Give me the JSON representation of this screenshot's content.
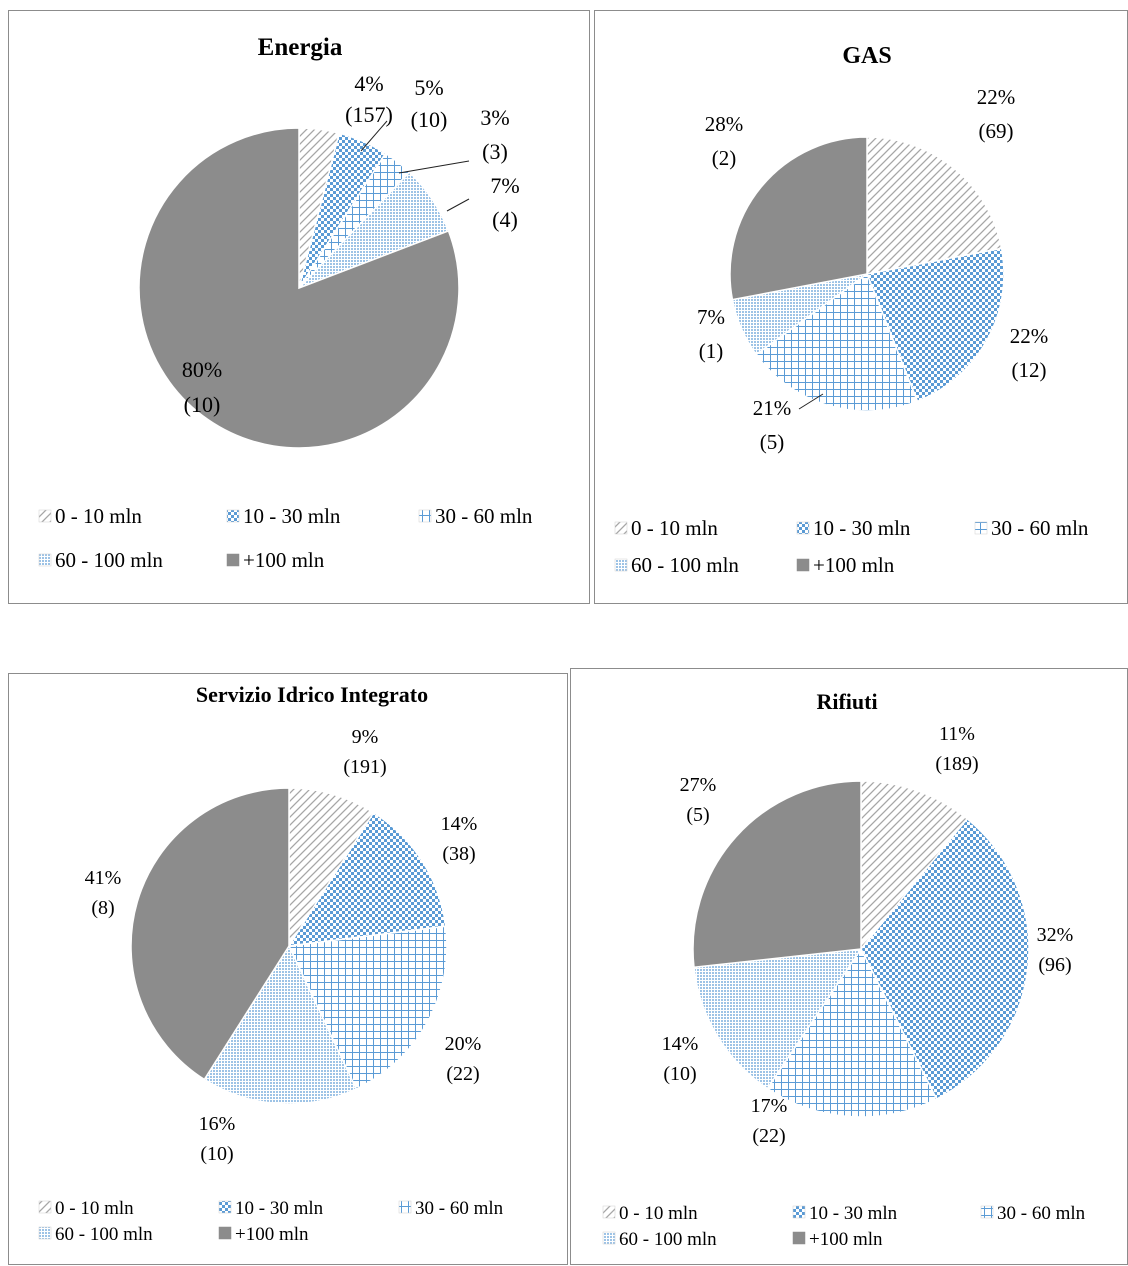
{
  "colors": {
    "slice_0_10": "#a6a6a6",
    "slice_10_30": "#5b9bd5",
    "slice_30_60": "#5b9bd5",
    "slice_60_100": "#9dc3e6",
    "slice_100_plus": "#8c8c8c",
    "border": "#8c8c8c"
  },
  "legend": [
    "0 - 10 mln",
    "10 - 30 mln",
    "30 - 60 mln",
    "60 - 100 mln",
    "+100 mln"
  ],
  "chart_data": [
    {
      "type": "pie",
      "title": "Energia",
      "categories": [
        "0 - 10 mln",
        "10 - 30 mln",
        "30 - 60 mln",
        "60 - 100 mln",
        "+100 mln"
      ],
      "values": [
        4,
        5,
        3,
        7,
        80
      ],
      "percent_labels": [
        "4%",
        "5%",
        "3%",
        "7%",
        "80%"
      ],
      "count_labels": [
        "(157)",
        "(10)",
        "(3)",
        "(4)",
        "(10)"
      ],
      "legend_position": "bottom"
    },
    {
      "type": "pie",
      "title": "GAS",
      "categories": [
        "0 - 10 mln",
        "10 - 30 mln",
        "30 - 60 mln",
        "60 - 100 mln",
        "+100 mln"
      ],
      "values": [
        22,
        22,
        21,
        7,
        28
      ],
      "percent_labels": [
        "22%",
        "22%",
        "21%",
        "7%",
        "28%"
      ],
      "count_labels": [
        "(69)",
        "(12)",
        "(5)",
        "(1)",
        "(2)"
      ],
      "legend_position": "bottom"
    },
    {
      "type": "pie",
      "title": "Servizio Idrico Integrato",
      "categories": [
        "0 - 10 mln",
        "10 - 30 mln",
        "30 - 60 mln",
        "60 - 100 mln",
        "+100 mln"
      ],
      "values": [
        9,
        14,
        20,
        16,
        41
      ],
      "percent_labels": [
        "9%",
        "14%",
        "20%",
        "16%",
        "41%"
      ],
      "count_labels": [
        "(191)",
        "(38)",
        "(22)",
        "(10)",
        "(8)"
      ],
      "legend_position": "bottom"
    },
    {
      "type": "pie",
      "title": "Rifiuti",
      "categories": [
        "0 - 10 mln",
        "10 - 30 mln",
        "30 - 60 mln",
        "60 - 100 mln",
        "+100 mln"
      ],
      "values": [
        11,
        32,
        17,
        14,
        27
      ],
      "percent_labels": [
        "11%",
        "32%",
        "17%",
        "14%",
        "27%"
      ],
      "count_labels": [
        "(189)",
        "(96)",
        "(22)",
        "(10)",
        "(5)"
      ],
      "legend_position": "bottom"
    }
  ]
}
